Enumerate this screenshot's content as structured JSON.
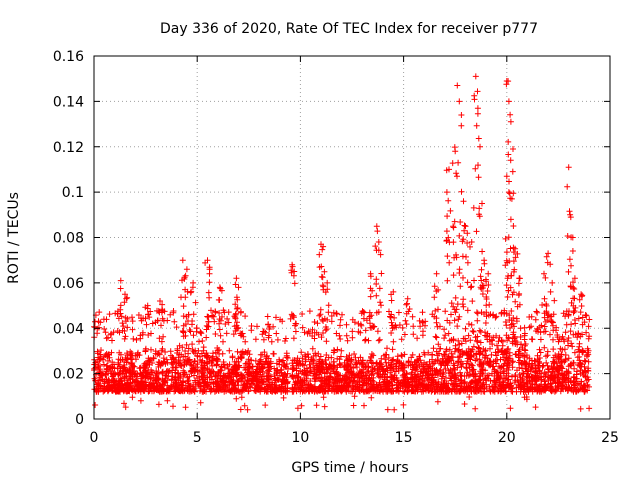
{
  "chart_data": {
    "type": "scatter",
    "title": "Day 336 of 2020, Rate Of TEC Index for receiver p777",
    "xlabel": "GPS time / hours",
    "ylabel": "ROTI / TECUs",
    "xlim": [
      0,
      25
    ],
    "ylim": [
      0,
      0.16
    ],
    "x_ticks": [
      0,
      5,
      10,
      15,
      20,
      25
    ],
    "y_ticks": [
      0,
      0.02,
      0.04,
      0.06,
      0.08,
      0.1,
      0.12,
      0.14,
      0.16
    ],
    "x_tick_labels": [
      "0",
      "5",
      "10",
      "15",
      "20",
      "25"
    ],
    "y_tick_labels": [
      "0",
      "0.02",
      "0.04",
      "0.06",
      "0.08",
      "0.1",
      "0.12",
      "0.14",
      "0.16"
    ],
    "grid": true,
    "marker": "+",
    "color": "#ff0000",
    "series": [
      {
        "name": "ROTI",
        "description": "Dense band of ROTI samples spanning 0-24 h, mostly 0.01-0.04 TECU/min",
        "band_min": 0.008,
        "band_max": 0.042,
        "x_range": [
          0,
          24
        ],
        "gap": [
          9.4,
          9.6
        ],
        "spikes": [
          {
            "x": 1.3,
            "y": 0.061
          },
          {
            "x": 1.5,
            "y": 0.055
          },
          {
            "x": 2.6,
            "y": 0.05
          },
          {
            "x": 3.2,
            "y": 0.052
          },
          {
            "x": 4.3,
            "y": 0.07
          },
          {
            "x": 4.5,
            "y": 0.066
          },
          {
            "x": 4.8,
            "y": 0.06
          },
          {
            "x": 5.5,
            "y": 0.07
          },
          {
            "x": 5.6,
            "y": 0.066
          },
          {
            "x": 6.1,
            "y": 0.058
          },
          {
            "x": 6.9,
            "y": 0.062
          },
          {
            "x": 7.0,
            "y": 0.058
          },
          {
            "x": 9.6,
            "y": 0.068
          },
          {
            "x": 9.7,
            "y": 0.065
          },
          {
            "x": 11.0,
            "y": 0.077
          },
          {
            "x": 11.1,
            "y": 0.076
          },
          {
            "x": 11.3,
            "y": 0.06
          },
          {
            "x": 13.4,
            "y": 0.064
          },
          {
            "x": 13.7,
            "y": 0.085
          },
          {
            "x": 13.8,
            "y": 0.078
          },
          {
            "x": 14.5,
            "y": 0.056
          },
          {
            "x": 15.2,
            "y": 0.053
          },
          {
            "x": 16.6,
            "y": 0.064
          },
          {
            "x": 17.1,
            "y": 0.1
          },
          {
            "x": 17.2,
            "y": 0.11
          },
          {
            "x": 17.4,
            "y": 0.085
          },
          {
            "x": 17.6,
            "y": 0.147
          },
          {
            "x": 17.7,
            "y": 0.14
          },
          {
            "x": 17.8,
            "y": 0.134
          },
          {
            "x": 17.5,
            "y": 0.118
          },
          {
            "x": 17.9,
            "y": 0.096
          },
          {
            "x": 18.0,
            "y": 0.085
          },
          {
            "x": 18.3,
            "y": 0.078
          },
          {
            "x": 18.5,
            "y": 0.151
          },
          {
            "x": 18.6,
            "y": 0.137
          },
          {
            "x": 18.7,
            "y": 0.12
          },
          {
            "x": 18.8,
            "y": 0.095
          },
          {
            "x": 18.9,
            "y": 0.07
          },
          {
            "x": 19.1,
            "y": 0.064
          },
          {
            "x": 20.0,
            "y": 0.149
          },
          {
            "x": 20.1,
            "y": 0.14
          },
          {
            "x": 20.2,
            "y": 0.131
          },
          {
            "x": 20.3,
            "y": 0.119
          },
          {
            "x": 20.0,
            "y": 0.107
          },
          {
            "x": 20.1,
            "y": 0.1
          },
          {
            "x": 20.2,
            "y": 0.088
          },
          {
            "x": 20.4,
            "y": 0.075
          },
          {
            "x": 20.6,
            "y": 0.062
          },
          {
            "x": 21.8,
            "y": 0.064
          },
          {
            "x": 22.0,
            "y": 0.073
          },
          {
            "x": 22.2,
            "y": 0.06
          },
          {
            "x": 23.0,
            "y": 0.111
          },
          {
            "x": 23.1,
            "y": 0.089
          },
          {
            "x": 23.2,
            "y": 0.08
          },
          {
            "x": 23.3,
            "y": 0.062
          },
          {
            "x": 23.6,
            "y": 0.055
          }
        ]
      }
    ]
  }
}
